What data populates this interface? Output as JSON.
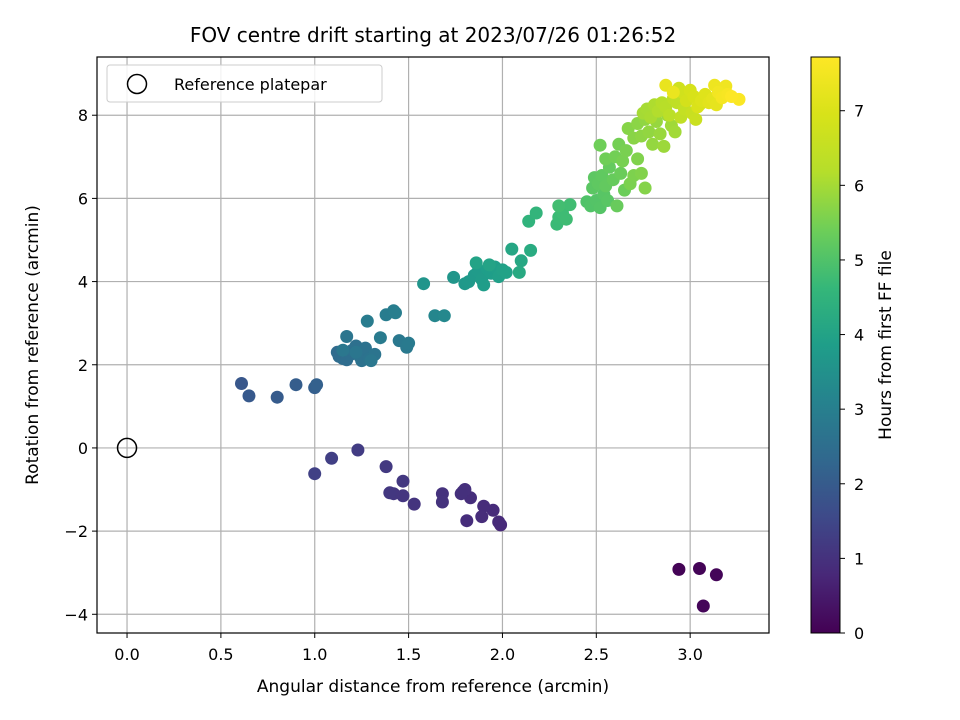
{
  "chart_data": {
    "type": "scatter",
    "title": "FOV centre drift starting at 2023/07/26 01:26:52",
    "xlabel": "Angular distance from reference (arcmin)",
    "ylabel": "Rotation from reference (arcmin)",
    "colorbar_label": "Hours from first FF file",
    "xlim": [
      -0.16,
      3.42
    ],
    "ylim": [
      -4.45,
      9.4
    ],
    "x_ticks": [
      "0.0",
      "0.5",
      "1.0",
      "1.5",
      "2.0",
      "2.5",
      "3.0"
    ],
    "x_tick_values": [
      0,
      0.5,
      1.0,
      1.5,
      2.0,
      2.5,
      3.0
    ],
    "y_ticks": [
      "−4",
      "−2",
      "0",
      "2",
      "4",
      "6",
      "8"
    ],
    "y_tick_values": [
      -4,
      -2,
      0,
      2,
      4,
      6,
      8
    ],
    "colorbar_range": [
      0,
      7.72
    ],
    "colorbar_ticks": [
      "0",
      "1",
      "2",
      "3",
      "4",
      "5",
      "6",
      "7"
    ],
    "colorbar_tick_values": [
      0,
      1,
      2,
      3,
      4,
      5,
      6,
      7
    ],
    "colormap": "viridis",
    "grid": true,
    "legend_position": "top-left",
    "legend": [
      {
        "label": "Reference platepar",
        "marker": "open-circle"
      }
    ],
    "reference_point": {
      "x": 0,
      "y": 0
    },
    "points": [
      [
        2.94,
        -2.92,
        0.05
      ],
      [
        3.05,
        -2.9,
        0.06
      ],
      [
        3.14,
        -3.05,
        0.08
      ],
      [
        3.07,
        -3.8,
        0.1
      ],
      [
        1.99,
        -1.85,
        0.8
      ],
      [
        1.98,
        -1.78,
        0.82
      ],
      [
        1.95,
        -1.5,
        0.85
      ],
      [
        1.9,
        -1.4,
        0.87
      ],
      [
        1.89,
        -1.65,
        0.88
      ],
      [
        1.81,
        -1.75,
        0.9
      ],
      [
        1.83,
        -1.2,
        0.92
      ],
      [
        1.79,
        -1.05,
        0.93
      ],
      [
        1.8,
        -1.0,
        0.95
      ],
      [
        1.78,
        -1.1,
        0.97
      ],
      [
        1.68,
        -1.1,
        1.0
      ],
      [
        1.68,
        -1.3,
        1.02
      ],
      [
        1.53,
        -1.35,
        1.05
      ],
      [
        1.47,
        -1.15,
        1.07
      ],
      [
        1.42,
        -1.1,
        1.1
      ],
      [
        1.4,
        -1.08,
        1.12
      ],
      [
        1.47,
        -0.8,
        1.15
      ],
      [
        1.38,
        -0.45,
        1.18
      ],
      [
        1.23,
        -0.05,
        1.25
      ],
      [
        1.09,
        -0.25,
        1.3
      ],
      [
        1.0,
        -0.62,
        1.35
      ],
      [
        0.61,
        1.55,
        1.9
      ],
      [
        0.65,
        1.25,
        1.95
      ],
      [
        0.8,
        1.22,
        2.0
      ],
      [
        0.9,
        1.52,
        2.05
      ],
      [
        1.0,
        1.45,
        2.1
      ],
      [
        1.01,
        1.52,
        2.15
      ],
      [
        1.12,
        2.3,
        2.4
      ],
      [
        1.13,
        2.2,
        2.42
      ],
      [
        1.15,
        2.15,
        2.45
      ],
      [
        1.17,
        2.12,
        2.47
      ],
      [
        1.19,
        2.25,
        2.5
      ],
      [
        1.2,
        2.35,
        2.52
      ],
      [
        1.22,
        2.45,
        2.55
      ],
      [
        1.24,
        2.2,
        2.57
      ],
      [
        1.25,
        2.1,
        2.6
      ],
      [
        1.27,
        2.4,
        2.62
      ],
      [
        1.29,
        2.15,
        2.65
      ],
      [
        1.32,
        2.25,
        2.67
      ],
      [
        1.17,
        2.68,
        2.7
      ],
      [
        1.22,
        2.3,
        2.72
      ],
      [
        1.15,
        2.35,
        2.75
      ],
      [
        1.3,
        2.1,
        2.77
      ],
      [
        1.45,
        2.58,
        2.8
      ],
      [
        1.49,
        2.42,
        2.82
      ],
      [
        1.5,
        2.52,
        2.85
      ],
      [
        1.35,
        2.65,
        2.87
      ],
      [
        1.28,
        3.05,
        2.9
      ],
      [
        1.38,
        3.2,
        2.92
      ],
      [
        1.42,
        3.3,
        2.95
      ],
      [
        1.43,
        3.25,
        2.97
      ],
      [
        1.64,
        3.18,
        3.2
      ],
      [
        1.69,
        3.18,
        3.25
      ],
      [
        1.58,
        3.95,
        3.6
      ],
      [
        1.74,
        4.1,
        3.65
      ],
      [
        1.8,
        3.95,
        3.7
      ],
      [
        1.82,
        4.0,
        3.72
      ],
      [
        1.85,
        4.15,
        3.75
      ],
      [
        1.87,
        4.25,
        3.77
      ],
      [
        1.89,
        4.05,
        3.8
      ],
      [
        1.9,
        3.92,
        3.82
      ],
      [
        1.92,
        4.3,
        3.85
      ],
      [
        1.94,
        4.2,
        3.87
      ],
      [
        1.96,
        4.35,
        3.9
      ],
      [
        1.98,
        4.12,
        3.92
      ],
      [
        2.0,
        4.28,
        3.95
      ],
      [
        2.02,
        4.22,
        3.97
      ],
      [
        1.86,
        4.45,
        4.0
      ],
      [
        1.93,
        4.4,
        4.02
      ],
      [
        2.05,
        4.78,
        4.1
      ],
      [
        2.1,
        4.5,
        4.15
      ],
      [
        2.09,
        4.22,
        4.2
      ],
      [
        2.15,
        4.75,
        4.25
      ],
      [
        2.14,
        5.45,
        4.5
      ],
      [
        2.18,
        5.65,
        4.55
      ],
      [
        2.29,
        5.38,
        4.7
      ],
      [
        2.3,
        5.55,
        4.72
      ],
      [
        2.32,
        5.65,
        4.75
      ],
      [
        2.34,
        5.5,
        4.77
      ],
      [
        2.36,
        5.85,
        4.8
      ],
      [
        2.3,
        5.82,
        4.82
      ],
      [
        2.45,
        5.92,
        5.0
      ],
      [
        2.47,
        5.82,
        5.02
      ],
      [
        2.5,
        5.95,
        5.05
      ],
      [
        2.52,
        5.78,
        5.07
      ],
      [
        2.54,
        6.1,
        5.1
      ],
      [
        2.56,
        5.95,
        5.12
      ],
      [
        2.48,
        6.25,
        5.15
      ],
      [
        2.49,
        6.5,
        5.17
      ],
      [
        2.51,
        6.35,
        5.2
      ],
      [
        2.53,
        6.55,
        5.22
      ],
      [
        2.55,
        6.3,
        5.25
      ],
      [
        2.57,
        6.75,
        5.27
      ],
      [
        2.59,
        6.45,
        5.3
      ],
      [
        2.61,
        5.82,
        5.32
      ],
      [
        2.63,
        6.6,
        5.35
      ],
      [
        2.65,
        6.2,
        5.37
      ],
      [
        2.52,
        7.28,
        5.4
      ],
      [
        2.55,
        6.95,
        5.42
      ],
      [
        2.6,
        7.0,
        5.45
      ],
      [
        2.62,
        7.3,
        5.47
      ],
      [
        2.64,
        6.9,
        5.5
      ],
      [
        2.66,
        7.15,
        5.52
      ],
      [
        2.68,
        6.35,
        5.55
      ],
      [
        2.7,
        6.55,
        5.57
      ],
      [
        2.72,
        6.95,
        5.6
      ],
      [
        2.74,
        6.6,
        5.62
      ],
      [
        2.76,
        6.25,
        5.65
      ],
      [
        2.67,
        7.68,
        5.67
      ],
      [
        2.7,
        7.45,
        5.7
      ],
      [
        2.72,
        7.8,
        5.72
      ],
      [
        2.74,
        7.5,
        5.75
      ],
      [
        2.76,
        7.9,
        5.77
      ],
      [
        2.78,
        7.6,
        5.8
      ],
      [
        2.8,
        7.3,
        5.82
      ],
      [
        2.82,
        7.85,
        5.85
      ],
      [
        2.84,
        7.55,
        5.87
      ],
      [
        2.86,
        7.25,
        5.9
      ],
      [
        2.88,
        8.0,
        5.92
      ],
      [
        2.9,
        7.75,
        5.95
      ],
      [
        2.92,
        7.6,
        5.97
      ],
      [
        2.75,
        8.05,
        6.0
      ],
      [
        2.77,
        8.15,
        6.02
      ],
      [
        2.79,
        7.95,
        6.05
      ],
      [
        2.81,
        8.25,
        6.1
      ],
      [
        2.83,
        8.1,
        6.15
      ],
      [
        2.85,
        8.3,
        6.2
      ],
      [
        2.87,
        8.2,
        6.25
      ],
      [
        2.89,
        8.0,
        6.3
      ],
      [
        2.91,
        8.4,
        6.35
      ],
      [
        2.93,
        8.3,
        6.4
      ],
      [
        2.95,
        7.95,
        6.45
      ],
      [
        2.97,
        8.15,
        6.5
      ],
      [
        2.99,
        8.45,
        6.55
      ],
      [
        3.01,
        8.05,
        6.6
      ],
      [
        3.03,
        7.9,
        6.65
      ],
      [
        3.05,
        8.25,
        6.7
      ],
      [
        2.94,
        8.65,
        6.75
      ],
      [
        2.96,
        8.55,
        6.8
      ],
      [
        2.98,
        8.35,
        6.85
      ],
      [
        3.0,
        8.6,
        6.9
      ],
      [
        3.02,
        8.45,
        6.95
      ],
      [
        3.04,
        8.2,
        7.0
      ],
      [
        3.06,
        8.35,
        7.05
      ],
      [
        3.08,
        8.5,
        7.1
      ],
      [
        3.1,
        8.3,
        7.15
      ],
      [
        3.12,
        8.4,
        7.2
      ],
      [
        3.14,
        8.25,
        7.25
      ],
      [
        2.87,
        8.72,
        7.3
      ],
      [
        2.91,
        8.55,
        7.35
      ],
      [
        3.13,
        8.72,
        7.4
      ],
      [
        3.19,
        8.7,
        7.45
      ],
      [
        3.15,
        8.55,
        7.5
      ],
      [
        3.17,
        8.42,
        7.55
      ],
      [
        3.2,
        8.5,
        7.6
      ],
      [
        3.26,
        8.38,
        7.65
      ],
      [
        3.22,
        8.45,
        7.7
      ]
    ]
  }
}
